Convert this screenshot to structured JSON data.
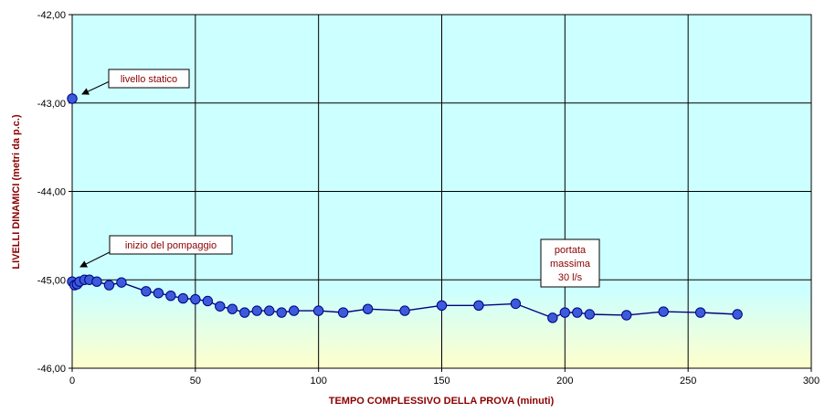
{
  "chart_data": {
    "type": "scatter",
    "title": "",
    "xlabel": "TEMPO COMPLESSIVO DELLA PROVA (minuti)",
    "ylabel": "LIVELLI DINAMICI (metri da p.c.)",
    "xlim": [
      0,
      300
    ],
    "ylim": [
      -46,
      -42
    ],
    "x_ticks": [
      "0",
      "50",
      "100",
      "150",
      "200",
      "250",
      "300"
    ],
    "y_ticks": [
      "-42,00",
      "-43,00",
      "-44,00",
      "-45,00",
      "-46,00"
    ],
    "grid": true,
    "series": [
      {
        "name": "",
        "marker": "circle",
        "color": "#3b5bdb",
        "points": [
          {
            "x": 0,
            "y": -42.95
          },
          {
            "x": 0,
            "y": -45.02
          },
          {
            "x": 1,
            "y": -45.06
          },
          {
            "x": 2,
            "y": -45.05
          },
          {
            "x": 3,
            "y": -45.02
          },
          {
            "x": 5,
            "y": -45.0
          },
          {
            "x": 7,
            "y": -45.0
          },
          {
            "x": 10,
            "y": -45.02
          },
          {
            "x": 15,
            "y": -45.06
          },
          {
            "x": 20,
            "y": -45.03
          },
          {
            "x": 30,
            "y": -45.13
          },
          {
            "x": 35,
            "y": -45.15
          },
          {
            "x": 40,
            "y": -45.18
          },
          {
            "x": 45,
            "y": -45.21
          },
          {
            "x": 50,
            "y": -45.22
          },
          {
            "x": 55,
            "y": -45.24
          },
          {
            "x": 60,
            "y": -45.3
          },
          {
            "x": 65,
            "y": -45.33
          },
          {
            "x": 70,
            "y": -45.37
          },
          {
            "x": 75,
            "y": -45.35
          },
          {
            "x": 80,
            "y": -45.35
          },
          {
            "x": 85,
            "y": -45.37
          },
          {
            "x": 90,
            "y": -45.35
          },
          {
            "x": 100,
            "y": -45.35
          },
          {
            "x": 110,
            "y": -45.37
          },
          {
            "x": 120,
            "y": -45.33
          },
          {
            "x": 135,
            "y": -45.35
          },
          {
            "x": 150,
            "y": -45.29
          },
          {
            "x": 165,
            "y": -45.29
          },
          {
            "x": 180,
            "y": -45.27
          },
          {
            "x": 195,
            "y": -45.43
          },
          {
            "x": 200,
            "y": -45.37
          },
          {
            "x": 205,
            "y": -45.37
          },
          {
            "x": 210,
            "y": -45.39
          },
          {
            "x": 225,
            "y": -45.4
          },
          {
            "x": 240,
            "y": -45.36
          },
          {
            "x": 255,
            "y": -45.37
          },
          {
            "x": 270,
            "y": -45.39
          }
        ]
      }
    ],
    "annotations": [
      {
        "text": "livello statico"
      },
      {
        "text": "inizio del pompaggio"
      },
      {
        "lines": [
          "portata",
          "massima",
          "30 l/s"
        ]
      }
    ],
    "background": {
      "top_color": "#ccffff",
      "bottom_color": "#ffffcc"
    }
  }
}
